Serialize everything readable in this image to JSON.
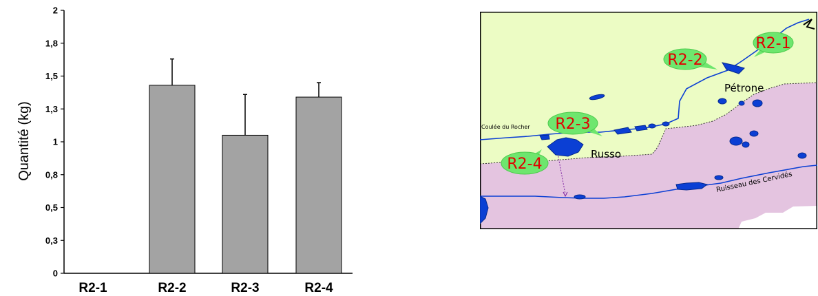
{
  "chart_data": {
    "type": "bar",
    "title": "",
    "xlabel": "",
    "ylabel": "Quantité (kg)",
    "categories": [
      "R2-1",
      "R2-2",
      "R2-3",
      "R2-4"
    ],
    "values": [
      0,
      1.43,
      1.05,
      1.34
    ],
    "errors": [
      0,
      0.2,
      0.31,
      0.11
    ],
    "ylim": [
      0,
      2
    ],
    "y_ticks": [
      {
        "value": 0,
        "label": "0"
      },
      {
        "value": 0.25,
        "label": "0,3"
      },
      {
        "value": 0.5,
        "label": "0,5"
      },
      {
        "value": 0.75,
        "label": "0,8"
      },
      {
        "value": 1.0,
        "label": "1"
      },
      {
        "value": 1.25,
        "label": "1,3"
      },
      {
        "value": 1.5,
        "label": "1,5"
      },
      {
        "value": 1.75,
        "label": "1,8"
      },
      {
        "value": 2.0,
        "label": "2"
      }
    ],
    "bar_color": "#a3a3a3",
    "grid": false,
    "legend": "none"
  },
  "map": {
    "colors": {
      "upper_zone": "#ecfcc4",
      "lower_zone": "#e4c4e0",
      "water": "#0b3fd4",
      "bubble": "#6ee66e",
      "bubble_text": "#e00000"
    },
    "bubbles": [
      "R2-1",
      "R2-2",
      "R2-3",
      "R2-4"
    ],
    "places": {
      "petrone": "Pétrone",
      "russo": "Russo",
      "coulee": "Coulée du Rocher",
      "ruisseau": "Ruisseau des Cervidés"
    }
  }
}
